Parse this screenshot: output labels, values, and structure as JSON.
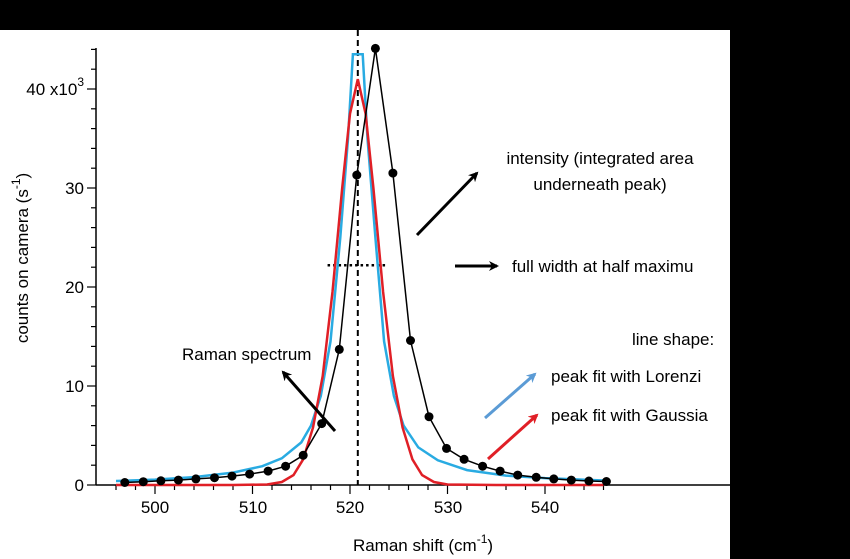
{
  "chart_data": {
    "type": "line",
    "xlabel": "Raman shift (cm",
    "xlabel_sup": "-1",
    "xlabel_suffix": ")",
    "ylabel": "counts on camera (s",
    "ylabel_sup": "-1",
    "ylabel_suffix": ")",
    "xlim": [
      496,
      546
    ],
    "ylim": [
      0,
      44000
    ],
    "x_ticks": [
      500,
      510,
      520,
      530,
      540
    ],
    "x_tick_labels": [
      "500",
      "510",
      "520",
      "530",
      "540"
    ],
    "y_ticks": [
      0,
      10000,
      20000,
      30000,
      40000
    ],
    "y_tick_labels": [
      "0",
      "10",
      "20",
      "30",
      "40 x10"
    ],
    "y_scale_sup": "3",
    "grid": false,
    "peak_line_x": 520.8,
    "fwhm_y": 22200,
    "fwhm_x": [
      517.7,
      523.8
    ],
    "series": [
      {
        "name": "Raman spectrum",
        "color": "#000000",
        "style": "line-markers",
        "x": [
          496.9,
          498.8,
          500.6,
          502.4,
          504.2,
          506.1,
          507.9,
          509.7,
          511.6,
          513.4,
          515.2,
          517.1,
          518.9,
          520.7,
          522.6,
          524.4,
          526.2,
          528.1,
          529.9,
          531.7,
          533.6,
          535.4,
          537.2,
          539.1,
          540.9,
          542.7,
          544.5,
          546.3
        ],
        "y": [
          250,
          330,
          420,
          500,
          620,
          740,
          900,
          1100,
          1400,
          1900,
          3000,
          6200,
          13700,
          31300,
          44100,
          31500,
          14600,
          6900,
          3700,
          2600,
          1900,
          1400,
          1000,
          780,
          620,
          500,
          400,
          350
        ]
      },
      {
        "name": "peak fit with Lorenzian",
        "color": "#29abe2",
        "style": "line",
        "x": [
          496,
          500,
          504,
          508,
          511,
          513,
          515,
          516,
          517,
          518,
          519,
          519.8,
          520.3,
          520.8,
          521.3,
          521.8,
          522.6,
          523.5,
          524.5,
          525.5,
          527,
          529,
          532,
          536,
          540,
          546
        ],
        "y": [
          400,
          550,
          800,
          1250,
          1900,
          2700,
          4300,
          6000,
          9000,
          14500,
          25000,
          35000,
          43500,
          43500,
          43500,
          35000,
          25000,
          14500,
          9000,
          6000,
          3800,
          2500,
          1500,
          950,
          700,
          450
        ]
      },
      {
        "name": "peak fit with Gaussian",
        "color": "#e01f26",
        "style": "line",
        "x": [
          496,
          508,
          511.5,
          513,
          514.2,
          515.2,
          516.2,
          517.2,
          518.2,
          519.2,
          520,
          520.8,
          521.6,
          522.4,
          523.4,
          524.4,
          525.4,
          526.4,
          527.4,
          528.6,
          530,
          535,
          546
        ],
        "y": [
          0,
          0,
          50,
          300,
          1000,
          2600,
          5800,
          11000,
          19500,
          30000,
          37500,
          41000,
          37500,
          30000,
          19500,
          11000,
          5800,
          2600,
          1000,
          300,
          50,
          0,
          0
        ]
      }
    ],
    "annotations": {
      "intensity_line1": "intensity (integrated area",
      "intensity_line2": "underneath peak)",
      "fwhm": "full width at half maximu",
      "raman_spectrum": "Raman spectrum",
      "line_shape": "line shape:",
      "lorentz": "peak fit with Lorenzi",
      "gauss": "peak fit with Gaussia"
    },
    "arrow_colors": {
      "intensity": "#000000",
      "fwhm": "#000000",
      "raman": "#000000",
      "lorentz": "#5b9bd5",
      "gauss": "#e01f26"
    }
  }
}
